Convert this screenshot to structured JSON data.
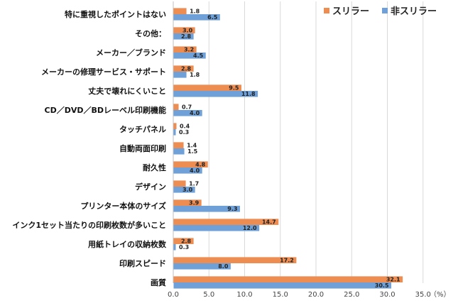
{
  "chart_data": {
    "type": "bar",
    "orientation": "horizontal",
    "categories": [
      "特に重視したポイントはない",
      "その他：",
      "メーカー／ブランド",
      "メーカーの修理サービス・サポート",
      "丈夫で壊れにくいこと",
      "CD／DVD／BDレーベル印刷機能",
      "タッチパネル",
      "自動両面印刷",
      "耐久性",
      "デザイン",
      "プリンター本体のサイズ",
      "インク1セット当たりの印刷枚数が多いこと",
      "用紙トレイの収納枚数",
      "印刷スピード",
      "画質"
    ],
    "series": [
      {
        "name": "スリラー",
        "color": "#ED8D52",
        "values": [
          1.8,
          3.0,
          3.2,
          2.8,
          9.5,
          0.7,
          0.4,
          1.4,
          4.8,
          1.7,
          3.9,
          14.7,
          2.8,
          17.2,
          32.1
        ],
        "labels": [
          "1.8",
          "3.0",
          "3.2",
          "2.8",
          "9.5",
          "0.7",
          "0.4",
          "1.4",
          "4.8",
          "1.7",
          "3.9",
          "14.7",
          "2.8",
          "17.2",
          "32.1"
        ]
      },
      {
        "name": "非スリラー",
        "color": "#6FA1D8",
        "values": [
          6.5,
          2.8,
          4.5,
          1.8,
          11.8,
          4.0,
          0.3,
          1.5,
          4.0,
          3.0,
          9.3,
          12.0,
          0.3,
          8.0,
          30.5
        ],
        "labels": [
          "6.5",
          "2.8",
          "4.5",
          "1.8",
          "11.8",
          "4.0",
          "0.3",
          "1.5",
          "4.0",
          "3.0",
          "9.3",
          "12.0",
          "0.3",
          "8.0",
          "30.5"
        ]
      }
    ],
    "xlim": [
      0,
      35
    ],
    "ticks": [
      0,
      5,
      10,
      15,
      20,
      25,
      30,
      35
    ],
    "tick_labels": [
      "0.0",
      "5.0",
      "10.0",
      "15.0",
      "20.0",
      "25.0",
      "30.0",
      "35.0"
    ],
    "unit_label": "（%）",
    "grid": true,
    "legend_position": "top-right"
  }
}
